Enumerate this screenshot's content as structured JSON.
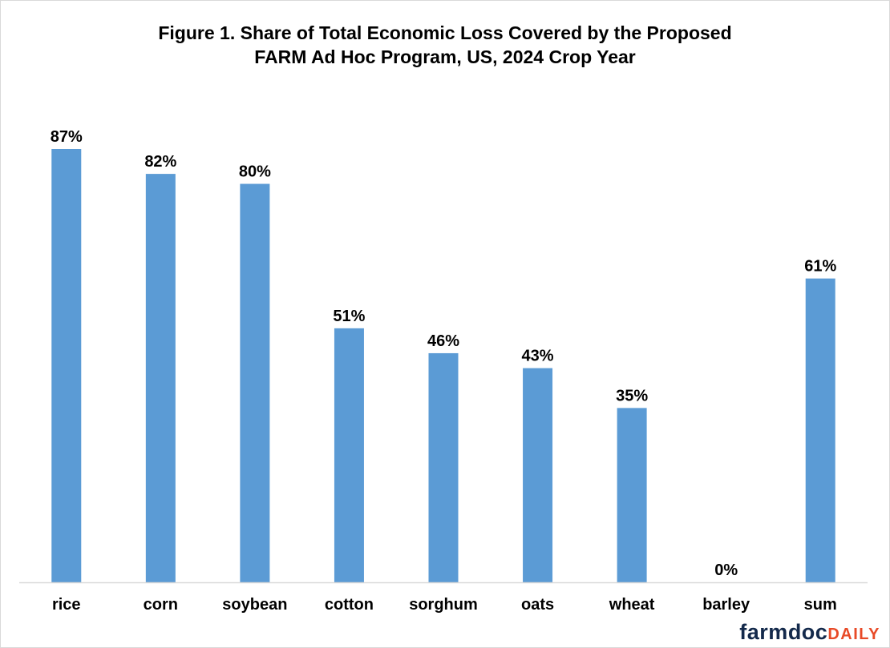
{
  "title_line1": "Figure 1. Share of Total Economic Loss Covered by the Proposed",
  "title_line2": "FARM Ad Hoc Program, US, 2024 Crop Year",
  "logo": {
    "part1": "farmdoc",
    "part2": "DAILY"
  },
  "colors": {
    "bar": "#5b9bd5",
    "axis": "#d9d9d9",
    "text": "#000000"
  },
  "chart_data": {
    "type": "bar",
    "categories": [
      "rice",
      "corn",
      "soybean",
      "cotton",
      "sorghum",
      "oats",
      "wheat",
      "barley",
      "sum"
    ],
    "values": [
      87,
      82,
      80,
      51,
      46,
      43,
      35,
      0,
      61
    ],
    "data_labels": [
      "87%",
      "82%",
      "80%",
      "51%",
      "46%",
      "43%",
      "35%",
      "0%",
      "61%"
    ],
    "title": "Figure 1. Share of Total Economic Loss Covered by the Proposed FARM Ad Hoc Program, US, 2024 Crop Year",
    "xlabel": "",
    "ylabel": "",
    "ylim": [
      0,
      100
    ],
    "grid": false,
    "legend": false
  }
}
